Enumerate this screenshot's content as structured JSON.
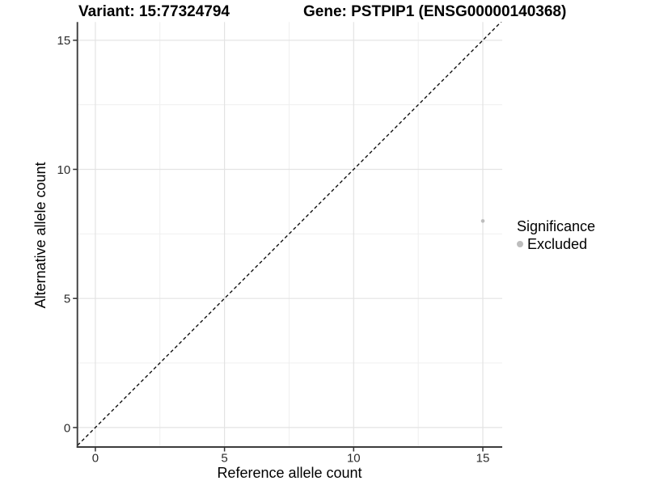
{
  "chart_data": {
    "type": "scatter",
    "titles": {
      "variant": "Variant: 15:77324794",
      "gene": "Gene: PSTPIP1 (ENSG00000140368)"
    },
    "xlabel": "Reference allele count",
    "ylabel": "Alternative allele count",
    "xlim": [
      0,
      15
    ],
    "ylim": [
      0,
      15
    ],
    "x_ticks": [
      0,
      5,
      10,
      15
    ],
    "y_ticks": [
      0,
      5,
      10,
      15
    ],
    "x_minor_ticks": [
      2.5,
      7.5,
      12.5
    ],
    "y_minor_ticks": [
      2.5,
      7.5,
      12.5
    ],
    "grid": "major+minor",
    "identity_line": {
      "type": "y=x",
      "style": "dashed",
      "color": "#111111"
    },
    "series": [
      {
        "name": "Excluded",
        "color": "#bdbdbd",
        "points": [
          {
            "x": 15,
            "y": 8
          }
        ]
      }
    ],
    "legend": {
      "position": "right",
      "title": "Significance",
      "items": [
        {
          "label": "Excluded",
          "color": "#bdbdbd"
        }
      ]
    }
  },
  "style": {
    "grid_major_color": "#e3e3e3",
    "grid_minor_color": "#efefef",
    "axis_line_color": "#3c3c3c",
    "tick_color": "#333333",
    "tick_label_color": "#2b2b2b",
    "axis_title_color": "#000000"
  }
}
